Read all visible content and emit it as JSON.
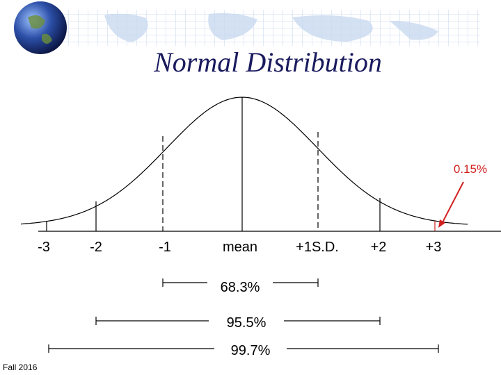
{
  "header": {
    "title": "Normal Distribution"
  },
  "axis_labels": [
    "-3",
    "-2",
    "-1",
    "mean",
    "+1S.D.",
    "+2",
    "+3"
  ],
  "ranges": [
    {
      "label": "68.3%"
    },
    {
      "label": "95.5%"
    },
    {
      "label": "99.7%"
    }
  ],
  "annotation": "0.15%",
  "footer": "Fall 2016"
}
